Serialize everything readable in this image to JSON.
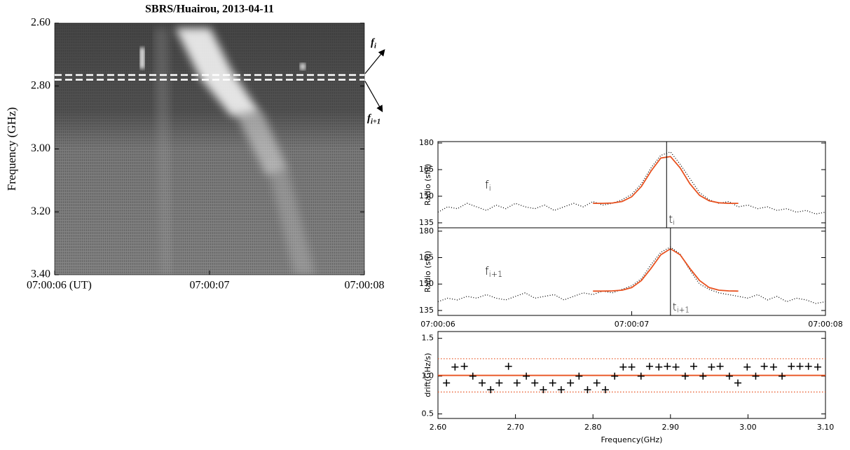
{
  "chart_data": [
    {
      "type": "image",
      "title": "SBRS/Huairou, 2013-04-11",
      "y_label": "Frequency (GHz)",
      "xlim": [
        6,
        8
      ],
      "xticks": [
        {
          "value": 6,
          "label": "07:00:06 (UT)"
        },
        {
          "value": 7,
          "label": "07:00:07"
        },
        {
          "value": 8,
          "label": "07:00:08"
        }
      ],
      "ylim": [
        2.6,
        3.4
      ],
      "y_inverted": true,
      "yticks": [
        {
          "value": 2.6,
          "label": "2.60"
        },
        {
          "value": 2.8,
          "label": "2.80"
        },
        {
          "value": 3.0,
          "label": "3.00"
        },
        {
          "value": 3.2,
          "label": "3.20"
        },
        {
          "value": 3.4,
          "label": "3.40"
        }
      ],
      "hlines": [
        2.765,
        2.78
      ],
      "annotations": [
        {
          "text": "f",
          "sub": "i"
        },
        {
          "text": "f",
          "sub": "i+1"
        }
      ]
    },
    {
      "type": "line",
      "y_label": "Radio (sfu)",
      "xlim": [
        6,
        8
      ],
      "ylim": [
        132.2,
        180.8
      ],
      "yticks": [
        135,
        150,
        165,
        180
      ],
      "annotation": {
        "text": "f",
        "sub": "i"
      },
      "vline": {
        "value": 7.18,
        "text": "t",
        "sub": "i"
      },
      "series": [
        {
          "style": "dotted",
          "color": "#000000",
          "x": [
            6.0,
            6.05,
            6.1,
            6.15,
            6.2,
            6.25,
            6.3,
            6.35,
            6.4,
            6.45,
            6.5,
            6.55,
            6.6,
            6.65,
            6.7,
            6.75,
            6.8,
            6.85,
            6.9,
            6.95,
            7.0,
            7.05,
            7.1,
            7.15,
            7.2,
            7.25,
            7.3,
            7.35,
            7.4,
            7.45,
            7.5,
            7.55,
            7.6,
            7.65,
            7.7,
            7.75,
            7.8,
            7.85,
            7.9,
            7.95,
            8.0
          ],
          "values": [
            141,
            144,
            143,
            146,
            144,
            142,
            145,
            143,
            146,
            144,
            143,
            145,
            142,
            144,
            146,
            144,
            147,
            145,
            146,
            148,
            151,
            157,
            166,
            173,
            175,
            168,
            160,
            152,
            148,
            146,
            147,
            144,
            145,
            143,
            144,
            142,
            143,
            141,
            142,
            140,
            141
          ]
        },
        {
          "style": "solid",
          "color": "#e8501e",
          "x": [
            6.8,
            6.85,
            6.9,
            6.95,
            7.0,
            7.05,
            7.1,
            7.15,
            7.2,
            7.25,
            7.3,
            7.35,
            7.4,
            7.45,
            7.5,
            7.55
          ],
          "values": [
            146.0,
            146.0,
            146.2,
            147.0,
            149.7,
            155.5,
            164.2,
            171.5,
            172.4,
            166.0,
            157.1,
            150.5,
            147.4,
            146.3,
            146.0,
            146.0
          ]
        }
      ]
    },
    {
      "type": "line",
      "y_label": "Radio (sfu)",
      "xlim": [
        6,
        8
      ],
      "ylim": [
        132.2,
        181.9
      ],
      "yticks": [
        135,
        150,
        165,
        180
      ],
      "xticks": [
        {
          "value": 6,
          "label": "07:00:06"
        },
        {
          "value": 7,
          "label": "07:00:07"
        },
        {
          "value": 8,
          "label": "07:00:08"
        }
      ],
      "annotation": {
        "text": "f",
        "sub": "i+1"
      },
      "vline": {
        "value": 7.2,
        "text": "t",
        "sub": "i+1"
      },
      "series": [
        {
          "style": "dotted",
          "color": "#000000",
          "x": [
            6.0,
            6.05,
            6.1,
            6.15,
            6.2,
            6.25,
            6.3,
            6.35,
            6.4,
            6.45,
            6.5,
            6.55,
            6.6,
            6.65,
            6.7,
            6.75,
            6.8,
            6.85,
            6.9,
            6.95,
            7.0,
            7.05,
            7.1,
            7.15,
            7.2,
            7.25,
            7.3,
            7.35,
            7.4,
            7.45,
            7.5,
            7.55,
            7.6,
            7.65,
            7.7,
            7.75,
            7.8,
            7.85,
            7.9,
            7.95,
            8.0
          ],
          "values": [
            140,
            142,
            141,
            143,
            142,
            144,
            142,
            141,
            143,
            145,
            142,
            143,
            144,
            141,
            143,
            145,
            144,
            146,
            145,
            147,
            149,
            153,
            161,
            168,
            171,
            167,
            158,
            150,
            147,
            145,
            144,
            143,
            142,
            144,
            141,
            143,
            140,
            142,
            141,
            139,
            140
          ]
        },
        {
          "style": "solid",
          "color": "#e8501e",
          "x": [
            6.8,
            6.85,
            6.9,
            6.95,
            7.0,
            7.05,
            7.1,
            7.15,
            7.2,
            7.25,
            7.3,
            7.35,
            7.4,
            7.45,
            7.5,
            7.55
          ],
          "values": [
            146.0,
            146.0,
            146.1,
            146.5,
            148.0,
            152.0,
            158.9,
            166.6,
            170.0,
            166.6,
            158.9,
            152.0,
            148.0,
            146.5,
            146.1,
            146.0
          ]
        }
      ]
    },
    {
      "type": "scatter",
      "x_label": "Frequency(GHz)",
      "y_label": "drift(GHz/s)",
      "xlim": [
        2.6,
        3.1
      ],
      "xticks": [
        {
          "value": 2.6,
          "label": "2.60"
        },
        {
          "value": 2.7,
          "label": "2.70"
        },
        {
          "value": 2.8,
          "label": "2.80"
        },
        {
          "value": 2.9,
          "label": "2.90"
        },
        {
          "value": 3.0,
          "label": "3.00"
        },
        {
          "value": 3.1,
          "label": "3.10"
        }
      ],
      "ylim": [
        0.44,
        1.59
      ],
      "yticks": [
        0.5,
        {
          "value": 1.0,
          "label": "1.0"
        },
        1.5
      ],
      "color": "#000000",
      "fit_line": 1.01,
      "fit_color": "#e8501e",
      "bounds": [
        0.79,
        1.23
      ],
      "x": [
        2.611,
        2.622,
        2.634,
        2.645,
        2.657,
        2.668,
        2.679,
        2.691,
        2.702,
        2.714,
        2.725,
        2.736,
        2.748,
        2.759,
        2.771,
        2.782,
        2.793,
        2.805,
        2.816,
        2.828,
        2.839,
        2.85,
        2.862,
        2.873,
        2.885,
        2.896,
        2.907,
        2.919,
        2.93,
        2.942,
        2.953,
        2.964,
        2.976,
        2.987,
        2.999,
        3.01,
        3.021,
        3.033,
        3.044,
        3.056,
        3.067,
        3.078,
        3.09
      ],
      "values": [
        0.91,
        1.12,
        1.13,
        1.0,
        0.91,
        0.82,
        0.91,
        1.13,
        0.91,
        1.0,
        0.91,
        0.82,
        0.91,
        0.82,
        0.91,
        1.0,
        0.82,
        0.91,
        0.82,
        1.0,
        1.12,
        1.12,
        1.0,
        1.13,
        1.12,
        1.13,
        1.12,
        1.0,
        1.13,
        1.0,
        1.12,
        1.13,
        1.0,
        0.91,
        1.12,
        1.0,
        1.13,
        1.12,
        1.0,
        1.13,
        1.13,
        1.13,
        1.12
      ]
    }
  ]
}
